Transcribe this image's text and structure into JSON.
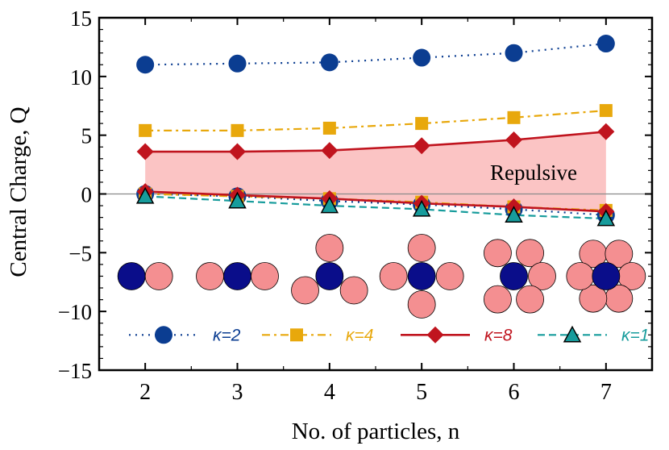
{
  "chart_data": {
    "type": "line",
    "title": "",
    "xlabel": "No. of particles, n",
    "ylabel": "Central Charge, Q",
    "xlim": [
      1.5,
      7.5
    ],
    "ylim": [
      -15,
      15
    ],
    "xticks": [
      "2",
      "3",
      "4",
      "5",
      "6",
      "7"
    ],
    "yticks": [
      "15",
      "10",
      "5",
      "0",
      "−5",
      "−10",
      "−15"
    ],
    "x": [
      2,
      3,
      4,
      5,
      6,
      7
    ],
    "series": [
      {
        "name": "κ=2",
        "marker": "circle",
        "line": "dotted",
        "color": "#0b3d91",
        "values": [
          11.0,
          11.1,
          11.2,
          11.6,
          12.0,
          12.8
        ],
        "lower_values": [
          0.0,
          -0.2,
          -0.6,
          -0.9,
          -1.3,
          -1.8
        ]
      },
      {
        "name": "κ=4",
        "marker": "square",
        "line": "dashdot",
        "color": "#e8a80c",
        "values": [
          5.4,
          5.4,
          5.6,
          6.0,
          6.5,
          7.1
        ],
        "lower_values": [
          0.0,
          -0.2,
          -0.4,
          -0.7,
          -1.1,
          -1.4
        ]
      },
      {
        "name": "κ=8",
        "marker": "diamond",
        "line": "solid",
        "color": "#c0141e",
        "values": [
          3.6,
          3.6,
          3.7,
          4.1,
          4.6,
          5.3
        ],
        "lower_values": [
          0.2,
          -0.1,
          -0.4,
          -0.8,
          -1.1,
          -1.5
        ]
      },
      {
        "name": "κ=1",
        "marker": "triangle",
        "line": "dashed",
        "color": "#179c9c",
        "values": [
          -0.2,
          -0.6,
          -1.0,
          -1.3,
          -1.8,
          -2.1
        ]
      }
    ],
    "shaded_region": {
      "label": "Repulsive",
      "upper_series": "κ=8",
      "color": "#fbc4c4"
    },
    "zero_line": 0,
    "particle_insets": [
      {
        "n": 2,
        "center": "dark-blue",
        "neighbors": "pink"
      },
      {
        "n": 3,
        "center": "dark-blue",
        "neighbors": "pink"
      },
      {
        "n": 4,
        "center": "dark-blue",
        "neighbors": "pink"
      },
      {
        "n": 5,
        "center": "dark-blue",
        "neighbors": "pink"
      },
      {
        "n": 6,
        "center": "dark-blue",
        "neighbors": "pink"
      },
      {
        "n": 7,
        "center": "dark-blue",
        "neighbors": "pink"
      }
    ],
    "legend": {
      "position": "bottom-inside",
      "columns": 4
    }
  }
}
